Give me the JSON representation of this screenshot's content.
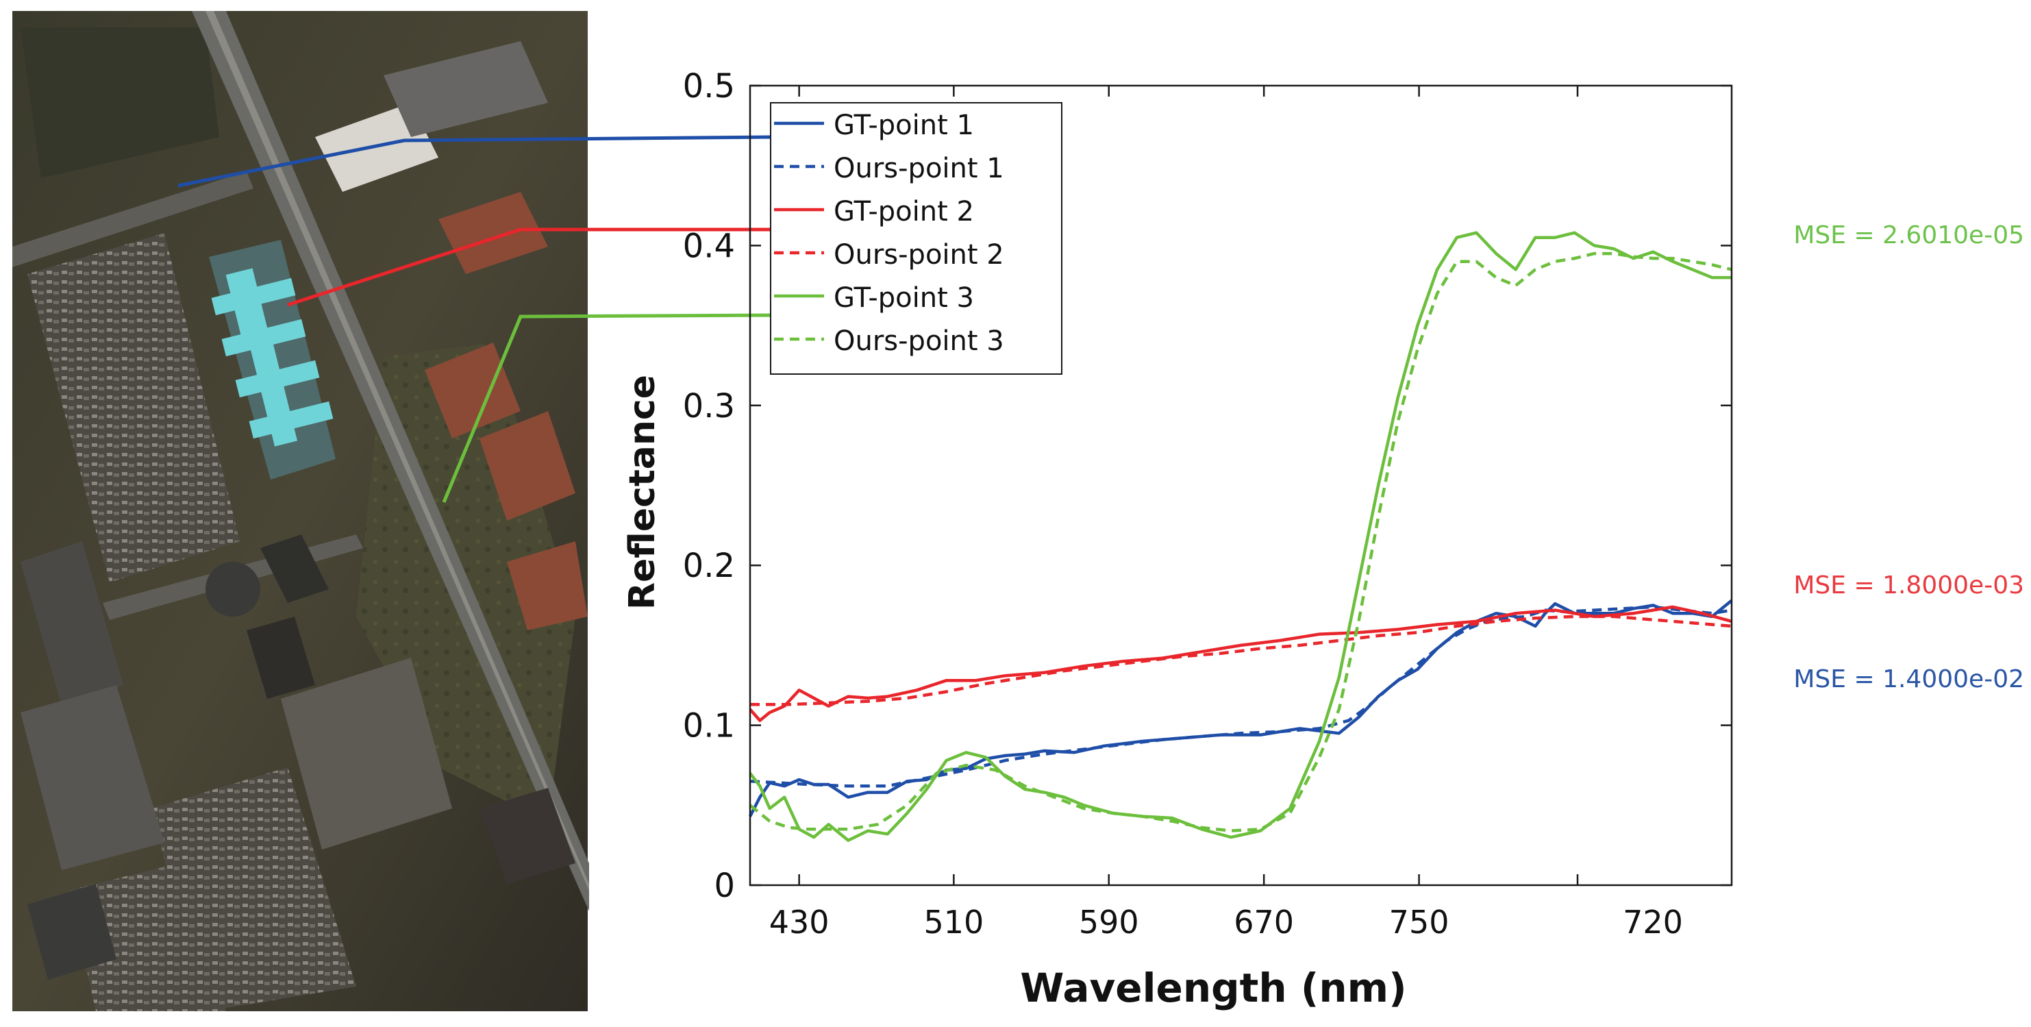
{
  "colors": {
    "point1": "#1f4ea8",
    "point2": "#e8262b",
    "point3": "#6cbf3c",
    "axis": "#1a1a1a",
    "mse1": "#2a56a6",
    "mse2": "#e83a3f",
    "mse3": "#6cc24a"
  },
  "image_panel": {
    "alt": "Aerial image of urban area with buildings and parking lots"
  },
  "chart_data": {
    "type": "line",
    "xlabel": "Wavelength (nm)",
    "ylabel": "Reflectance",
    "xlim": [
      0,
      1
    ],
    "ylim": [
      0,
      0.5
    ],
    "x_ticks": [
      "430",
      "510",
      "590",
      "670",
      "750",
      "720"
    ],
    "y_ticks": [
      "0",
      "0.1",
      "0.2",
      "0.3",
      "0.4",
      "0.5"
    ],
    "grid": false,
    "legend_position": "top-left",
    "x_unit_note": "x values are the fraction of the plotted band range (tick labels printed as shown)",
    "series": [
      {
        "name": "GT-point 1",
        "color_key": "point1",
        "dash": false,
        "x": [
          0,
          0.01,
          0.02,
          0.035,
          0.05,
          0.065,
          0.08,
          0.1,
          0.12,
          0.14,
          0.16,
          0.18,
          0.2,
          0.22,
          0.24,
          0.26,
          0.28,
          0.3,
          0.33,
          0.36,
          0.4,
          0.44,
          0.48,
          0.52,
          0.56,
          0.6,
          0.62,
          0.64,
          0.66,
          0.68,
          0.7,
          0.72,
          0.74,
          0.76,
          0.78,
          0.8,
          0.81,
          0.82,
          0.84,
          0.86,
          0.88,
          0.9,
          0.92,
          0.94,
          0.96,
          0.98,
          1.0
        ],
        "y": [
          0.043,
          0.055,
          0.064,
          0.062,
          0.066,
          0.063,
          0.063,
          0.055,
          0.058,
          0.058,
          0.065,
          0.066,
          0.072,
          0.073,
          0.079,
          0.081,
          0.082,
          0.084,
          0.083,
          0.087,
          0.09,
          0.092,
          0.094,
          0.094,
          0.098,
          0.095,
          0.105,
          0.118,
          0.128,
          0.135,
          0.148,
          0.158,
          0.165,
          0.17,
          0.168,
          0.162,
          0.17,
          0.176,
          0.17,
          0.17,
          0.17,
          0.173,
          0.175,
          0.17,
          0.17,
          0.168,
          0.178
        ]
      },
      {
        "name": "Ours-point 1",
        "color_key": "point1",
        "dash": true,
        "x": [
          0,
          0.03,
          0.06,
          0.1,
          0.14,
          0.18,
          0.22,
          0.26,
          0.3,
          0.34,
          0.38,
          0.42,
          0.46,
          0.5,
          0.54,
          0.58,
          0.61,
          0.63,
          0.65,
          0.67,
          0.69,
          0.71,
          0.73,
          0.75,
          0.77,
          0.79,
          0.81,
          0.83,
          0.86,
          0.89,
          0.92,
          0.95,
          0.98,
          1.0
        ],
        "y": [
          0.065,
          0.064,
          0.063,
          0.062,
          0.062,
          0.067,
          0.072,
          0.078,
          0.082,
          0.085,
          0.088,
          0.091,
          0.093,
          0.095,
          0.096,
          0.098,
          0.103,
          0.112,
          0.123,
          0.133,
          0.143,
          0.153,
          0.16,
          0.165,
          0.167,
          0.168,
          0.172,
          0.171,
          0.172,
          0.173,
          0.174,
          0.172,
          0.17,
          0.172
        ]
      },
      {
        "name": "GT-point 2",
        "color_key": "point2",
        "dash": false,
        "x": [
          0,
          0.01,
          0.02,
          0.035,
          0.05,
          0.065,
          0.08,
          0.1,
          0.12,
          0.14,
          0.17,
          0.2,
          0.23,
          0.26,
          0.3,
          0.34,
          0.38,
          0.42,
          0.46,
          0.5,
          0.54,
          0.58,
          0.62,
          0.66,
          0.7,
          0.74,
          0.78,
          0.82,
          0.86,
          0.9,
          0.94,
          0.97,
          1.0
        ],
        "y": [
          0.11,
          0.103,
          0.108,
          0.112,
          0.122,
          0.117,
          0.112,
          0.118,
          0.117,
          0.118,
          0.122,
          0.128,
          0.128,
          0.131,
          0.133,
          0.137,
          0.14,
          0.142,
          0.146,
          0.15,
          0.153,
          0.157,
          0.158,
          0.16,
          0.163,
          0.165,
          0.17,
          0.172,
          0.168,
          0.17,
          0.174,
          0.17,
          0.165
        ]
      },
      {
        "name": "Ours-point 2",
        "color_key": "point2",
        "dash": true,
        "x": [
          0,
          0.04,
          0.08,
          0.12,
          0.16,
          0.2,
          0.24,
          0.28,
          0.32,
          0.36,
          0.4,
          0.44,
          0.48,
          0.52,
          0.56,
          0.6,
          0.64,
          0.68,
          0.72,
          0.76,
          0.8,
          0.84,
          0.88,
          0.92,
          0.96,
          1.0
        ],
        "y": [
          0.113,
          0.113,
          0.114,
          0.115,
          0.117,
          0.121,
          0.126,
          0.13,
          0.134,
          0.137,
          0.14,
          0.143,
          0.145,
          0.148,
          0.15,
          0.153,
          0.156,
          0.158,
          0.162,
          0.165,
          0.167,
          0.168,
          0.168,
          0.166,
          0.164,
          0.162
        ]
      },
      {
        "name": "GT-point 3",
        "color_key": "point3",
        "dash": false,
        "x": [
          0,
          0.01,
          0.02,
          0.035,
          0.05,
          0.065,
          0.08,
          0.1,
          0.12,
          0.14,
          0.16,
          0.18,
          0.2,
          0.22,
          0.24,
          0.26,
          0.28,
          0.3,
          0.32,
          0.34,
          0.37,
          0.4,
          0.43,
          0.46,
          0.49,
          0.52,
          0.55,
          0.58,
          0.6,
          0.62,
          0.64,
          0.66,
          0.68,
          0.7,
          0.72,
          0.74,
          0.76,
          0.78,
          0.79,
          0.8,
          0.82,
          0.84,
          0.86,
          0.88,
          0.9,
          0.92,
          0.94,
          0.96,
          0.98,
          1.0
        ],
        "y": [
          0.07,
          0.062,
          0.048,
          0.055,
          0.035,
          0.03,
          0.038,
          0.028,
          0.034,
          0.032,
          0.045,
          0.06,
          0.078,
          0.083,
          0.08,
          0.068,
          0.06,
          0.058,
          0.055,
          0.05,
          0.045,
          0.043,
          0.042,
          0.035,
          0.03,
          0.034,
          0.048,
          0.09,
          0.13,
          0.19,
          0.25,
          0.305,
          0.35,
          0.385,
          0.405,
          0.408,
          0.395,
          0.385,
          0.395,
          0.405,
          0.405,
          0.408,
          0.4,
          0.398,
          0.392,
          0.396,
          0.39,
          0.385,
          0.38,
          0.38
        ]
      },
      {
        "name": "Ours-point 3",
        "color_key": "point3",
        "dash": true,
        "x": [
          0,
          0.02,
          0.04,
          0.06,
          0.08,
          0.1,
          0.13,
          0.16,
          0.19,
          0.22,
          0.25,
          0.28,
          0.31,
          0.34,
          0.37,
          0.4,
          0.43,
          0.46,
          0.49,
          0.52,
          0.55,
          0.58,
          0.6,
          0.62,
          0.64,
          0.66,
          0.68,
          0.7,
          0.72,
          0.74,
          0.76,
          0.78,
          0.8,
          0.82,
          0.84,
          0.86,
          0.88,
          0.9,
          0.92,
          0.94,
          0.96,
          0.98,
          1.0
        ],
        "y": [
          0.05,
          0.04,
          0.036,
          0.035,
          0.035,
          0.035,
          0.038,
          0.05,
          0.07,
          0.075,
          0.072,
          0.062,
          0.055,
          0.048,
          0.045,
          0.043,
          0.04,
          0.036,
          0.034,
          0.035,
          0.045,
          0.08,
          0.11,
          0.165,
          0.23,
          0.29,
          0.335,
          0.37,
          0.39,
          0.39,
          0.38,
          0.375,
          0.385,
          0.39,
          0.392,
          0.395,
          0.395,
          0.393,
          0.392,
          0.392,
          0.39,
          0.388,
          0.385
        ]
      }
    ],
    "annotations": [
      {
        "text": "MSE = 2.6010e-05",
        "color_key": "mse3",
        "y_ref": 0.4
      },
      {
        "text": "MSE = 1.8000e-03",
        "color_key": "mse2",
        "y_ref": 0.188
      },
      {
        "text": "MSE = 1.4000e-02",
        "color_key": "mse1",
        "y_ref": 0.125
      }
    ],
    "image_markers": [
      {
        "series": "point1",
        "color_key": "point1",
        "legend_row": 0
      },
      {
        "series": "point2",
        "color_key": "point2",
        "legend_row": 2
      },
      {
        "series": "point3",
        "color_key": "point3",
        "legend_row": 4
      }
    ]
  }
}
